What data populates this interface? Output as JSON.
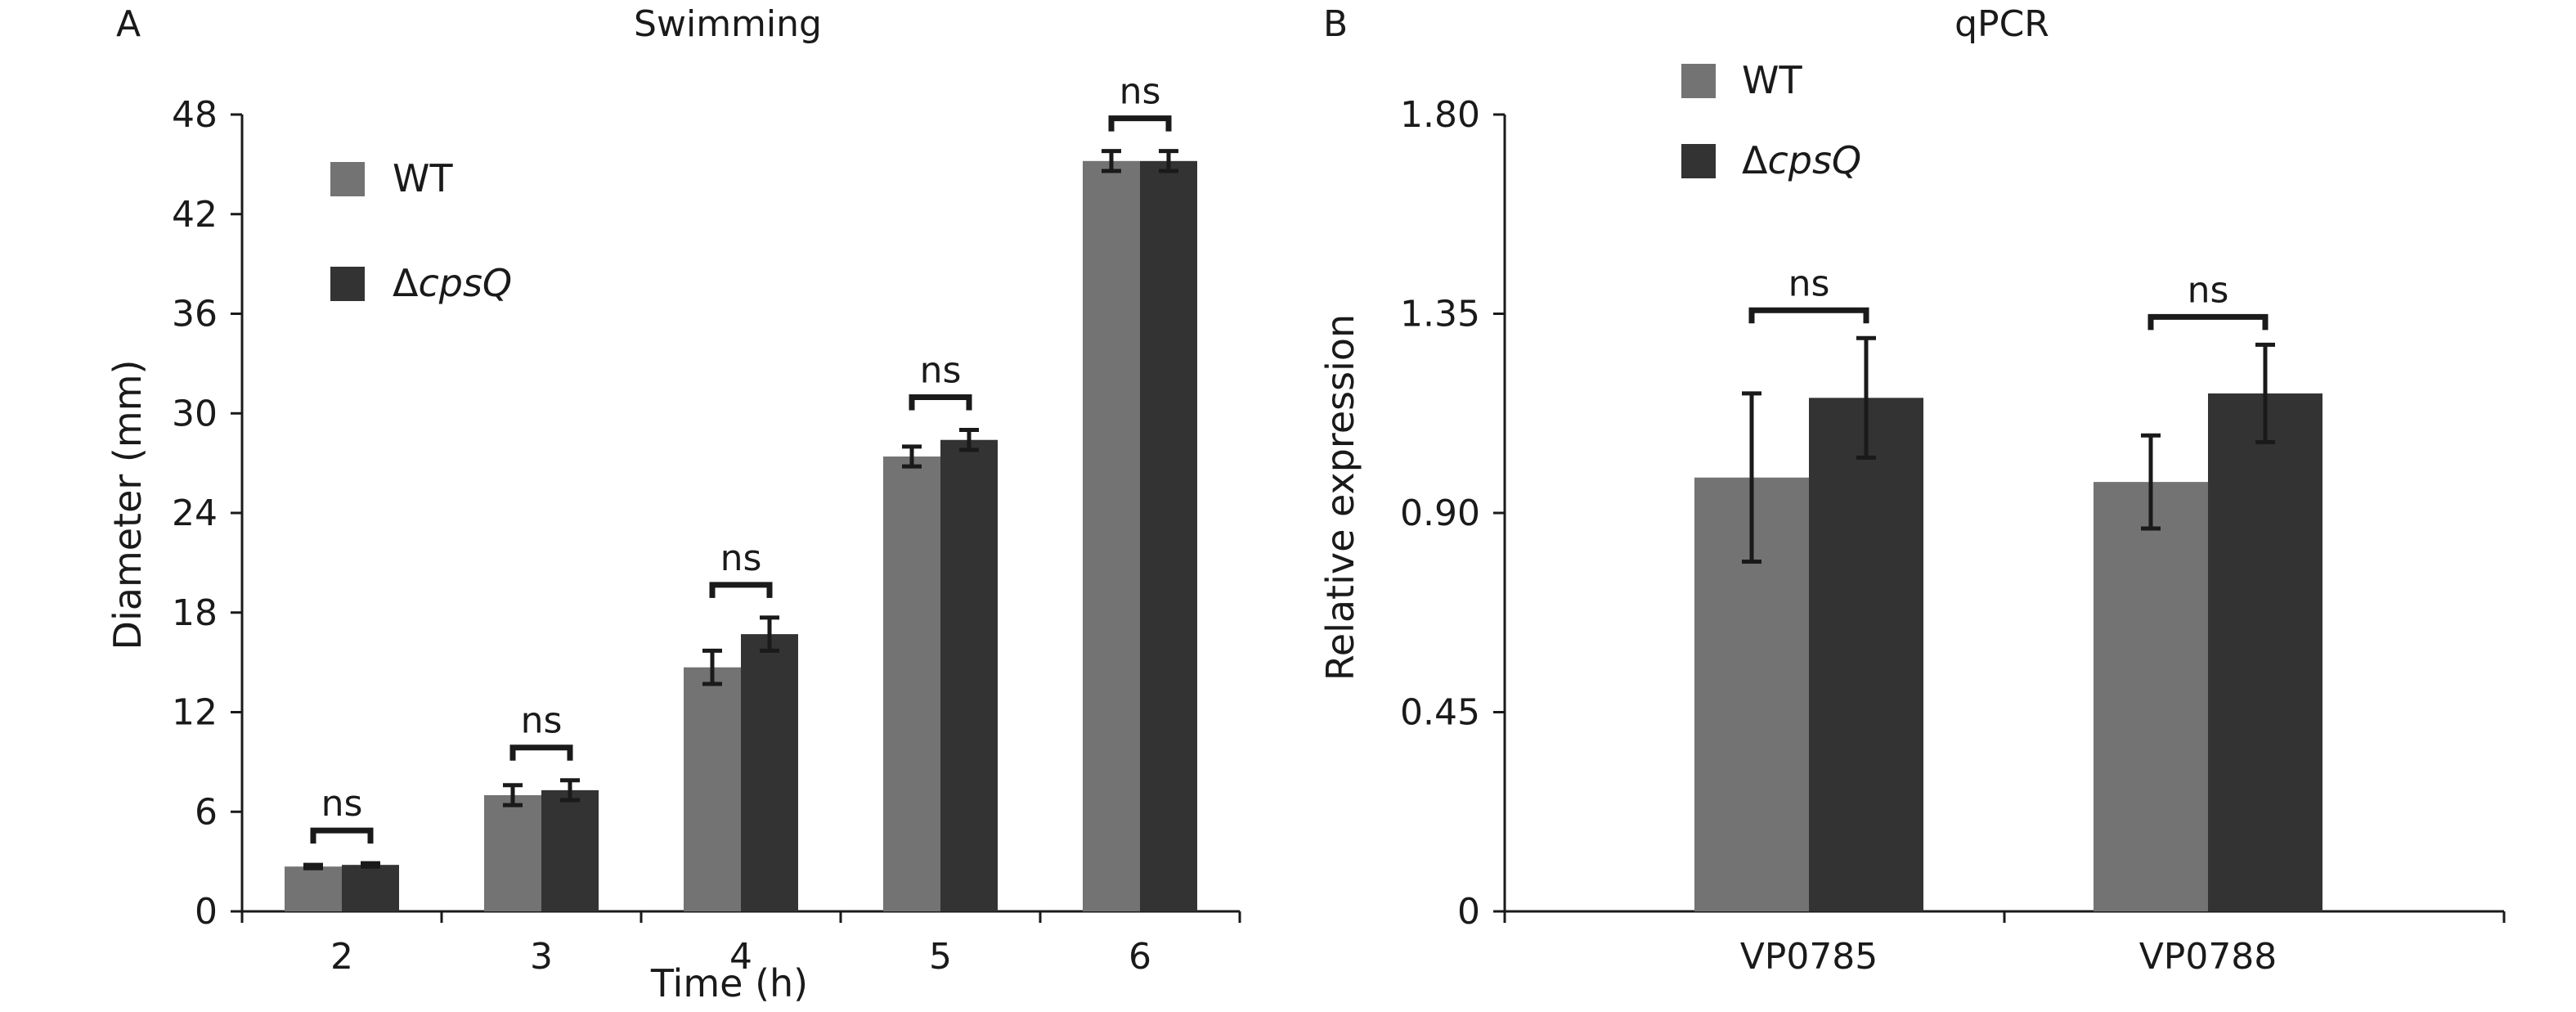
{
  "chart_data": [
    {
      "panel_label": "A",
      "type": "bar",
      "title": "Swimming",
      "xlabel": "Time (h)",
      "ylabel": "Diameter (mm)",
      "categories": [
        "2",
        "3",
        "4",
        "5",
        "6"
      ],
      "yticks": [
        "0",
        "6",
        "12",
        "18",
        "24",
        "30",
        "36",
        "42",
        "48"
      ],
      "ylim": [
        0,
        48
      ],
      "series": [
        {
          "name": "WT",
          "color": "#737373",
          "values": [
            2.7,
            7.0,
            14.7,
            27.4,
            45.2
          ],
          "errors": [
            0.1,
            0.6,
            1.0,
            0.6,
            0.6
          ]
        },
        {
          "name": "ΔcpsQ",
          "name_prefix": "Δ",
          "name_italic": "cpsQ",
          "color": "#333333",
          "values": [
            2.8,
            7.3,
            16.7,
            28.4,
            45.2
          ],
          "errors": [
            0.1,
            0.6,
            1.0,
            0.6,
            0.6
          ]
        }
      ],
      "significance": [
        "ns",
        "ns",
        "ns",
        "ns",
        "ns"
      ],
      "legend_position": "top-left",
      "grid": false
    },
    {
      "panel_label": "B",
      "type": "bar",
      "title": "qPCR",
      "xlabel": "",
      "ylabel": "Relative expression",
      "categories": [
        "VP0785",
        "VP0788"
      ],
      "yticks": [
        "0",
        "0.45",
        "0.90",
        "1.35",
        "1.80"
      ],
      "ylim": [
        0,
        1.8
      ],
      "series": [
        {
          "name": "WT",
          "color": "#737373",
          "values": [
            0.98,
            0.97
          ],
          "errors": [
            0.19,
            0.105
          ]
        },
        {
          "name": "ΔcpsQ",
          "name_prefix": "Δ",
          "name_italic": "cpsQ",
          "color": "#333333",
          "values": [
            1.16,
            1.17
          ],
          "errors": [
            0.135,
            0.11
          ]
        }
      ],
      "significance": [
        "ns",
        "ns"
      ],
      "legend_position": "top-left",
      "grid": false
    }
  ]
}
